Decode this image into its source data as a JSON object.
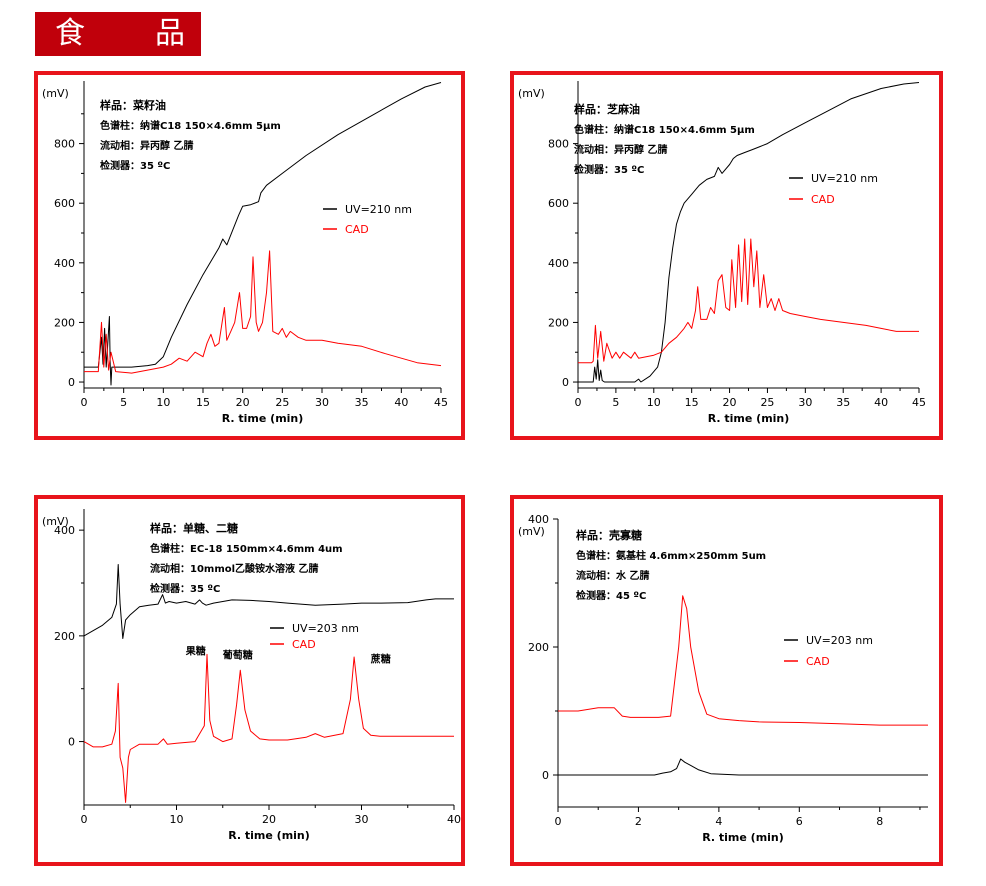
{
  "header": {
    "char1": "食",
    "char2": "品"
  },
  "colors": {
    "banner": "#c0000b",
    "frame": "#e8141b",
    "uv": "#000000",
    "cad": "#ff0000"
  },
  "chart_data": [
    {
      "type": "line",
      "info": [
        "样品：菜籽油",
        "色谱柱：纳谱C18  150×4.6mm  5μm",
        "流动相：异丙醇  乙腈",
        "检测器：35 ºC"
      ],
      "xlabel": "R. time (min)",
      "ylabel": "(mV)",
      "xlim": [
        0,
        45
      ],
      "ylim": [
        -20,
        1010
      ],
      "xticks": [
        0,
        5,
        10,
        15,
        20,
        25,
        30,
        35,
        40,
        45
      ],
      "yticks": [
        0,
        200,
        400,
        600,
        800
      ],
      "legend": [
        "UV=210 nm",
        "CAD"
      ],
      "series": [
        {
          "name": "UV=210 nm",
          "color": "#000000",
          "x": [
            0,
            1.8,
            2.2,
            2.4,
            2.6,
            2.8,
            3.0,
            3.2,
            3.3,
            3.4,
            3.5,
            4,
            6,
            8,
            9,
            10,
            11,
            13,
            15,
            17,
            17.5,
            18,
            19.5,
            20,
            21,
            22,
            22.3,
            23,
            25,
            28,
            32,
            36,
            40,
            43,
            45
          ],
          "y": [
            50,
            50,
            150,
            60,
            180,
            50,
            130,
            220,
            60,
            -10,
            50,
            50,
            50,
            55,
            60,
            85,
            150,
            260,
            360,
            450,
            480,
            460,
            560,
            590,
            595,
            605,
            635,
            660,
            700,
            760,
            830,
            890,
            950,
            990,
            1005
          ]
        },
        {
          "name": "CAD",
          "color": "#ff0000",
          "x": [
            0,
            1.8,
            2.2,
            2.5,
            2.8,
            3.1,
            3.4,
            4,
            6,
            8,
            10,
            11,
            12,
            13,
            14,
            15,
            15.5,
            16,
            16.5,
            17,
            17.7,
            18,
            18.5,
            19,
            19.6,
            20,
            20.5,
            21,
            21.3,
            21.7,
            22,
            22.5,
            23,
            23.4,
            23.8,
            24.5,
            25,
            25.5,
            26,
            27,
            28,
            30,
            32,
            35,
            38,
            40,
            42,
            45
          ],
          "y": [
            35,
            35,
            200,
            50,
            160,
            40,
            100,
            35,
            30,
            40,
            50,
            60,
            80,
            70,
            100,
            85,
            130,
            160,
            120,
            130,
            250,
            140,
            170,
            200,
            300,
            180,
            180,
            220,
            420,
            200,
            170,
            200,
            300,
            440,
            170,
            160,
            180,
            150,
            170,
            150,
            140,
            140,
            130,
            120,
            95,
            80,
            65,
            55
          ]
        }
      ]
    },
    {
      "type": "line",
      "info": [
        "样品：芝麻油",
        "色谱柱：纳谱C18  150×4.6mm  5μm",
        "流动相：异丙醇  乙腈",
        "检测器：35 ºC"
      ],
      "xlabel": "R. time (min)",
      "ylabel": "(mV)",
      "xlim": [
        0,
        45
      ],
      "ylim": [
        -20,
        1010
      ],
      "xticks": [
        0,
        5,
        10,
        15,
        20,
        25,
        30,
        35,
        40,
        45
      ],
      "yticks": [
        0,
        200,
        400,
        600,
        800
      ],
      "legend": [
        "UV=210 nm",
        "CAD"
      ],
      "series": [
        {
          "name": "UV=210 nm",
          "color": "#000000",
          "x": [
            0,
            2,
            2.2,
            2.4,
            2.6,
            2.8,
            3.0,
            3.2,
            3.5,
            5,
            7.5,
            8,
            8.3,
            9.5,
            10.5,
            11,
            11.5,
            12,
            12.5,
            13,
            13.5,
            14,
            15,
            16,
            17,
            18,
            18.5,
            19,
            20,
            20.5,
            21,
            22,
            23,
            24,
            25,
            27,
            30,
            33,
            36,
            40,
            43,
            45
          ],
          "y": [
            0,
            0,
            50,
            10,
            75,
            5,
            40,
            5,
            0,
            0,
            0,
            10,
            0,
            20,
            50,
            100,
            200,
            350,
            450,
            530,
            570,
            600,
            630,
            660,
            680,
            690,
            720,
            700,
            730,
            750,
            760,
            770,
            780,
            790,
            800,
            830,
            870,
            910,
            950,
            985,
            1000,
            1005
          ]
        },
        {
          "name": "CAD",
          "color": "#ff0000",
          "x": [
            0,
            1.8,
            2,
            2.3,
            2.6,
            3,
            3.4,
            3.8,
            4.5,
            5,
            5.5,
            6,
            7,
            7.5,
            8,
            9,
            10,
            11,
            12,
            13,
            13.5,
            14,
            14.5,
            15,
            15.5,
            15.8,
            16.2,
            17,
            17.5,
            18,
            18.5,
            19,
            19.5,
            20,
            20.3,
            20.8,
            21.2,
            21.6,
            22,
            22.4,
            22.8,
            23.2,
            23.6,
            24,
            24.5,
            25,
            25.5,
            26,
            26.5,
            27,
            28,
            30,
            32,
            35,
            38,
            40,
            42,
            45
          ],
          "y": [
            65,
            65,
            70,
            190,
            80,
            170,
            70,
            130,
            80,
            100,
            80,
            100,
            80,
            100,
            80,
            85,
            90,
            100,
            130,
            150,
            165,
            180,
            200,
            180,
            240,
            320,
            210,
            210,
            250,
            230,
            340,
            360,
            250,
            240,
            410,
            250,
            460,
            270,
            480,
            260,
            480,
            320,
            440,
            250,
            360,
            250,
            280,
            240,
            280,
            240,
            230,
            220,
            210,
            200,
            190,
            180,
            170,
            170
          ]
        }
      ]
    },
    {
      "type": "line",
      "info": [
        "样品：单糖、二糖",
        "色谱柱：EC-18   150mm×4.6mm  4um",
        "流动相：10mmol乙酸铵水溶液   乙腈",
        "检测器：35 ºC"
      ],
      "xlabel": "R. time (min)",
      "ylabel": "(mV)",
      "xlim": [
        0,
        40
      ],
      "ylim": [
        -120,
        440
      ],
      "xticks": [
        0,
        10,
        20,
        30,
        40
      ],
      "yticks": [
        0,
        200,
        400
      ],
      "legend": [
        "UV=203 nm",
        "CAD"
      ],
      "annotations": [
        {
          "text": "果糖",
          "x": 11.0,
          "y": 165
        },
        {
          "text": "葡萄糖",
          "x": 15.0,
          "y": 157
        },
        {
          "text": "蔗糖",
          "x": 31.0,
          "y": 150
        }
      ],
      "series": [
        {
          "name": "UV=203 nm",
          "color": "#000000",
          "x": [
            0,
            1,
            2,
            3,
            3.5,
            3.7,
            3.9,
            4.2,
            4.5,
            5,
            6,
            7,
            8,
            8.5,
            8.8,
            9.2,
            10,
            11,
            12,
            12.5,
            12.8,
            13.2,
            14,
            15,
            16,
            18,
            20,
            22,
            25,
            28,
            30,
            32,
            35,
            37,
            38,
            40
          ],
          "y": [
            200,
            210,
            220,
            235,
            260,
            335,
            260,
            195,
            230,
            240,
            255,
            258,
            260,
            278,
            262,
            265,
            262,
            265,
            260,
            268,
            262,
            258,
            262,
            265,
            268,
            267,
            265,
            262,
            258,
            260,
            262,
            262,
            263,
            268,
            270,
            270
          ]
        },
        {
          "name": "CAD",
          "color": "#ff0000",
          "x": [
            0,
            1,
            2,
            3,
            3.4,
            3.7,
            3.9,
            4.2,
            4.5,
            4.8,
            5,
            6,
            8,
            8.6,
            9,
            10,
            12,
            13,
            13.3,
            13.6,
            14,
            15,
            16,
            16.5,
            16.9,
            17.4,
            18,
            19,
            20,
            22,
            24,
            25,
            26,
            28,
            28.8,
            29.2,
            29.7,
            30.2,
            31,
            32,
            35,
            38,
            40
          ],
          "y": [
            0,
            -10,
            -10,
            -5,
            20,
            110,
            -30,
            -50,
            -115,
            -30,
            -15,
            -5,
            -5,
            5,
            -5,
            -3,
            0,
            30,
            165,
            40,
            10,
            0,
            5,
            70,
            135,
            60,
            20,
            5,
            3,
            3,
            8,
            15,
            8,
            15,
            80,
            160,
            80,
            25,
            12,
            10,
            10,
            10,
            10
          ]
        }
      ]
    },
    {
      "type": "line",
      "info": [
        "样品：壳寡糖",
        "色谱柱：氨基柱  4.6mm×250mm  5um",
        "流动相：水  乙腈",
        "检测器：45 ºC"
      ],
      "xlabel": "R. time (min)",
      "ylabel": "(mV)",
      "xlim": [
        0,
        9.2
      ],
      "ylim": [
        -50,
        400
      ],
      "xticks": [
        0,
        2,
        4,
        6,
        8
      ],
      "yticks": [
        0,
        200,
        400
      ],
      "legend": [
        "UV=203 nm",
        "CAD"
      ],
      "series": [
        {
          "name": "UV=203 nm",
          "color": "#000000",
          "x": [
            0,
            1,
            2,
            2.4,
            2.6,
            2.8,
            2.95,
            3.05,
            3.15,
            3.3,
            3.5,
            3.8,
            4.5,
            6,
            9.2
          ],
          "y": [
            0,
            0,
            0,
            0,
            3,
            5,
            10,
            25,
            20,
            15,
            8,
            2,
            0,
            0,
            0
          ]
        },
        {
          "name": "CAD",
          "color": "#ff0000",
          "x": [
            0,
            0.5,
            1,
            1.4,
            1.6,
            1.8,
            2.5,
            2.8,
            3.0,
            3.1,
            3.2,
            3.3,
            3.5,
            3.7,
            4.0,
            4.5,
            5,
            6,
            7,
            8,
            9.2
          ],
          "y": [
            100,
            100,
            105,
            105,
            92,
            90,
            90,
            92,
            200,
            280,
            260,
            200,
            130,
            95,
            88,
            85,
            83,
            82,
            80,
            78,
            78
          ]
        }
      ]
    }
  ]
}
